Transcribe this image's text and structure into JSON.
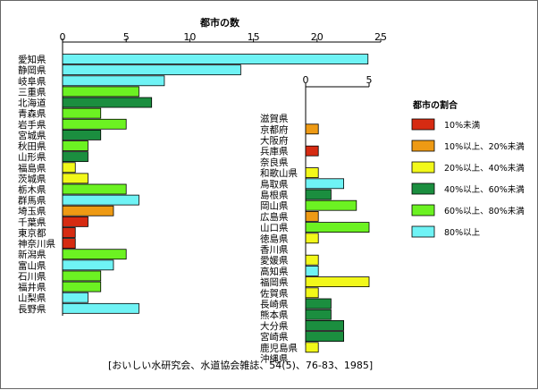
{
  "chart_data": [
    {
      "type": "bar",
      "orientation": "horizontal",
      "title": "都市の数",
      "xlim": [
        0,
        25
      ],
      "ticks": [
        0,
        5,
        10,
        15,
        20,
        25
      ],
      "categories": [
        "愛知県",
        "静岡県",
        "岐阜県",
        "三重県",
        "北海道",
        "青森県",
        "岩手県",
        "宮城県",
        "秋田県",
        "山形県",
        "福島県",
        "茨城県",
        "栃木県",
        "群馬県",
        "埼玉県",
        "千葉県",
        "東京都",
        "神奈川県",
        "新潟県",
        "富山県",
        "石川県",
        "福井県",
        "山梨県",
        "長野県"
      ],
      "values": [
        24,
        14,
        8,
        6,
        7,
        3,
        5,
        3,
        2,
        2,
        1,
        2,
        5,
        6,
        4,
        2,
        1,
        1,
        5,
        4,
        3,
        3,
        2,
        6
      ],
      "ratio_class": [
        6,
        6,
        6,
        5,
        4,
        5,
        5,
        4,
        5,
        4,
        3,
        3,
        5,
        6,
        2,
        1,
        1,
        1,
        5,
        6,
        5,
        5,
        6,
        6
      ]
    },
    {
      "type": "bar",
      "orientation": "horizontal",
      "xlim": [
        0,
        5
      ],
      "ticks": [
        0,
        5
      ],
      "categories": [
        "滋賀県",
        "京都府",
        "大阪府",
        "兵庫県",
        "奈良県",
        "和歌山県",
        "鳥取県",
        "島根県",
        "岡山県",
        "広島県",
        "山口県",
        "徳島県",
        "香川県",
        "愛媛県",
        "高知県",
        "福岡県",
        "佐賀県",
        "長崎県",
        "熊本県",
        "大分県",
        "宮崎県",
        "鹿児島県",
        "沖縄県"
      ],
      "values": [
        0,
        1,
        0,
        1,
        0,
        1,
        3,
        2,
        4,
        1,
        5,
        1,
        0,
        1,
        1,
        5,
        1,
        2,
        2,
        3,
        3,
        1,
        0
      ],
      "ratio_class": [
        0,
        2,
        0,
        1,
        0,
        3,
        6,
        4,
        5,
        2,
        5,
        3,
        0,
        3,
        6,
        3,
        3,
        4,
        4,
        4,
        4,
        3,
        0
      ]
    }
  ],
  "legend": {
    "title": "都市の割合",
    "items": [
      {
        "label": "10%未満",
        "color": "#d62b12"
      },
      {
        "label": "10%以上、20%未満",
        "color": "#ee9a14"
      },
      {
        "label": "20%以上、40%未満",
        "color": "#f2f81a"
      },
      {
        "label": "40%以上、60%未満",
        "color": "#1b8e3f"
      },
      {
        "label": "60%以上、80%未満",
        "color": "#6cf222"
      },
      {
        "label": "80%以上",
        "color": "#6ff3f5"
      }
    ]
  },
  "citation": "[おいしい水研究会、水道協会雑誌、54(5)、76-83、1985]"
}
